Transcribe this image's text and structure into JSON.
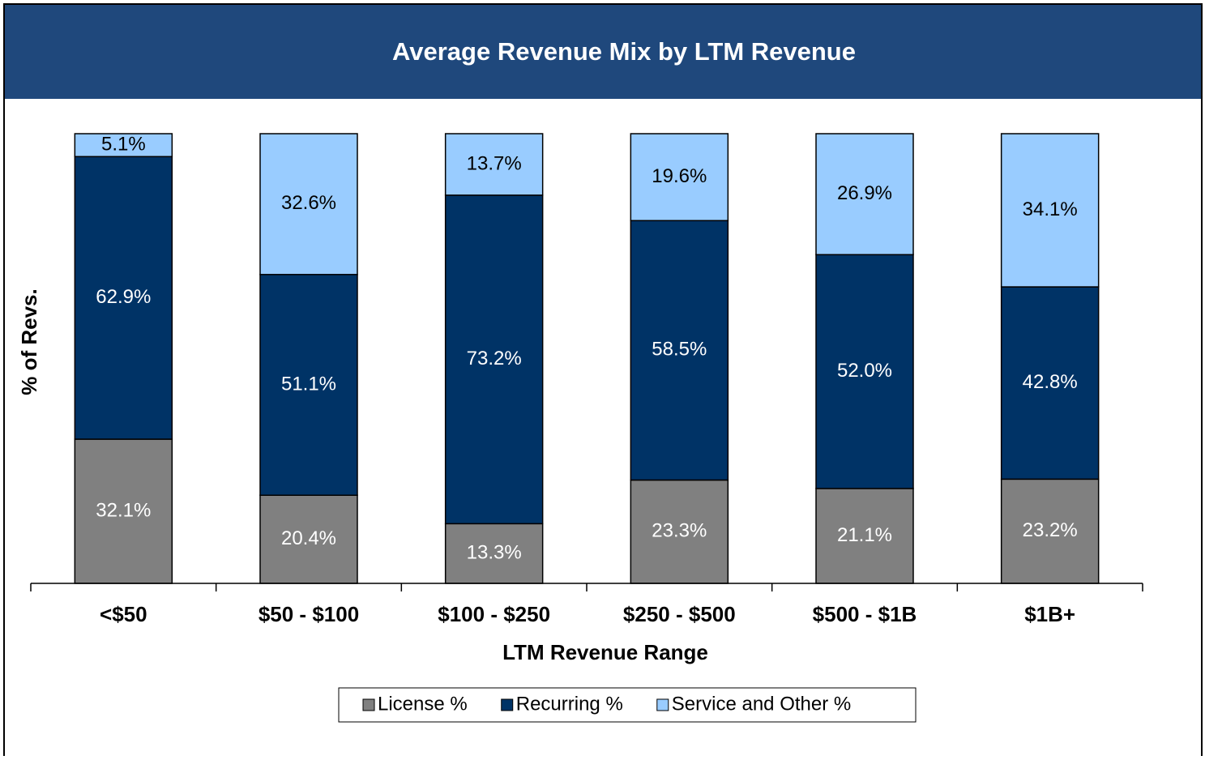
{
  "chart_data": {
    "type": "bar",
    "stacking": "percent",
    "title": "Average Revenue Mix by LTM Revenue",
    "x_label": "LTM Revenue Range",
    "y_label": "% of Revs.",
    "categories": [
      "<$50",
      "$50 - $100",
      "$100 - $250",
      "$250 - $500",
      "$500 - $1B",
      "$1B+"
    ],
    "series": [
      {
        "name": "License %",
        "color": "#808080",
        "values": [
          32.1,
          20.4,
          13.3,
          23.3,
          21.1,
          23.2
        ],
        "value_labels": [
          "32.1%",
          "20.4%",
          "13.3%",
          "23.3%",
          "21.1%",
          "23.2%"
        ]
      },
      {
        "name": "Recurring %",
        "color": "#003366",
        "values": [
          62.9,
          51.1,
          73.2,
          58.5,
          52.0,
          42.8
        ],
        "value_labels": [
          "62.9%",
          "51.1%",
          "73.2%",
          "58.5%",
          "52.0%",
          "42.8%"
        ]
      },
      {
        "name": "Service and Other %",
        "color": "#99ccff",
        "values": [
          5.1,
          32.6,
          13.7,
          19.6,
          26.9,
          34.1
        ],
        "value_labels": [
          "5.1%",
          "32.6%",
          "13.7%",
          "19.6%",
          "26.9%",
          "34.1%"
        ]
      }
    ],
    "legend": "bottom"
  }
}
